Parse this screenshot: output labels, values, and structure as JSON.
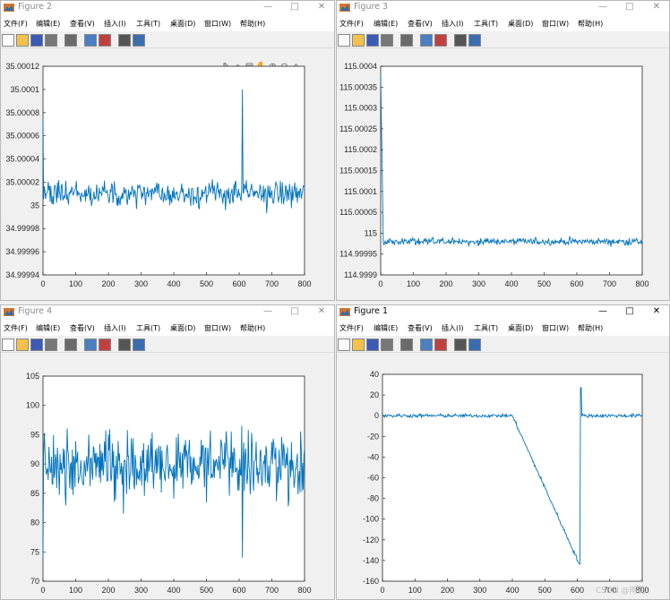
{
  "menu": [
    "文件(F)",
    "编辑(E)",
    "查看(V)",
    "插入(I)",
    "工具(T)",
    "桌面(D)",
    "窗口(W)",
    "帮助(H)"
  ],
  "window_controls": {
    "minimize": "—",
    "maximize": "□",
    "close": "✕"
  },
  "colors": {
    "line": "#0072bd",
    "axes_bg": "#ffffff",
    "figure_bg": "#f0f0f0"
  },
  "watermark": "CSDN @雨花",
  "figures": [
    {
      "title": "Figure 2",
      "chart_data": {
        "type": "line",
        "xlim": [
          0,
          800
        ],
        "ylim": [
          34.99994,
          35.00012
        ],
        "x_ticks": [
          "0",
          "100",
          "200",
          "300",
          "400",
          "500",
          "600",
          "700",
          "800"
        ],
        "y_ticks": [
          "34.99994",
          "34.99996",
          "34.99998",
          "35",
          "35.00002",
          "35.00004",
          "35.00006",
          "35.00008",
          "35.0001",
          "35.00012"
        ],
        "series": [
          {
            "mean": 35.00001,
            "noise": 1.2e-05,
            "start": 35.000075,
            "spike_at": 610,
            "spike_value": 35.0001
          }
        ]
      }
    },
    {
      "title": "Figure 3",
      "chart_data": {
        "type": "line",
        "xlim": [
          0,
          800
        ],
        "ylim": [
          114.9999,
          115.0004
        ],
        "x_ticks": [
          "0",
          "100",
          "200",
          "300",
          "400",
          "500",
          "600",
          "700",
          "800"
        ],
        "y_ticks": [
          "114.9999",
          "114.99995",
          "115",
          "115.00005",
          "115.0001",
          "115.00015",
          "115.0002",
          "115.00025",
          "115.0003",
          "115.00035",
          "115.0004"
        ],
        "series": [
          {
            "mean": 114.99998,
            "noise": 1.5e-05,
            "start": 115.00038,
            "decay_end": 8
          }
        ]
      }
    },
    {
      "title": "Figure 4",
      "chart_data": {
        "type": "line",
        "xlim": [
          0,
          800
        ],
        "ylim": [
          70,
          105
        ],
        "x_ticks": [
          "0",
          "100",
          "200",
          "300",
          "400",
          "500",
          "600",
          "700",
          "800"
        ],
        "y_ticks": [
          "70",
          "75",
          "80",
          "85",
          "90",
          "95",
          "100",
          "105"
        ],
        "series": [
          {
            "mean": 90,
            "noise": 6,
            "start": 74,
            "spike_at": 610,
            "spike_value": 74
          }
        ]
      }
    },
    {
      "title": "Figure 1",
      "chart_data": {
        "type": "line",
        "xlim": [
          0,
          800
        ],
        "ylim": [
          -160,
          40
        ],
        "x_ticks": [
          "0",
          "100",
          "200",
          "300",
          "400",
          "500",
          "600",
          "700",
          "800"
        ],
        "y_ticks": [
          "-160",
          "-140",
          "-120",
          "-100",
          "-80",
          "-60",
          "-40",
          "-20",
          "0",
          "20",
          "40"
        ],
        "series": [
          {
            "mean": 0,
            "noise": 3,
            "ramp_start": 400,
            "ramp_end": 610,
            "ramp_bottom": -146,
            "spike_value": 27
          }
        ]
      }
    }
  ]
}
